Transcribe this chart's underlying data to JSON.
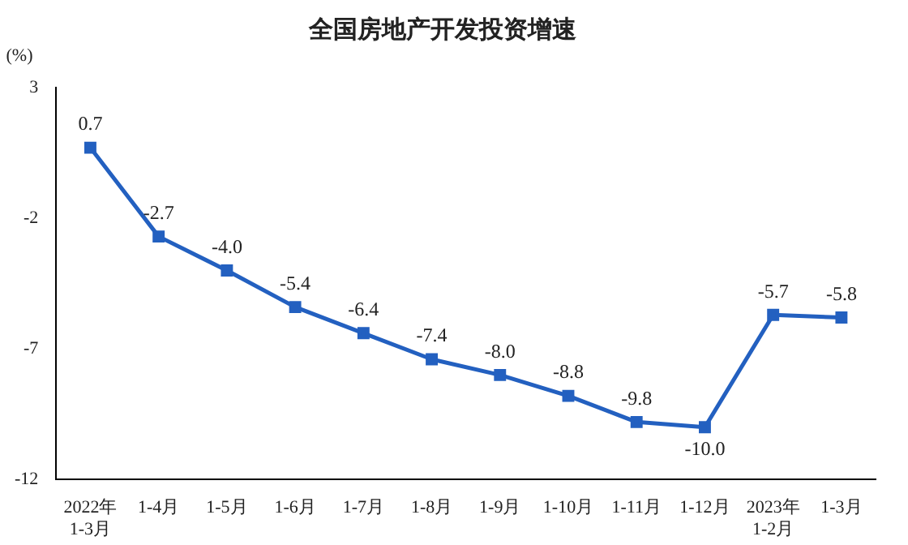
{
  "chart_data": {
    "type": "line",
    "title": "全国房地产开发投资增速",
    "ylabel": "(%)",
    "categories": [
      "2022年\n1-3月",
      "1-4月",
      "1-5月",
      "1-6月",
      "1-7月",
      "1-8月",
      "1-9月",
      "1-10月",
      "1-11月",
      "1-12月",
      "2023年\n1-2月",
      "1-3月"
    ],
    "values": [
      0.7,
      -2.7,
      -4.0,
      -5.4,
      -6.4,
      -7.4,
      -8.0,
      -8.8,
      -9.8,
      -10.0,
      -5.7,
      -5.8
    ],
    "value_labels": [
      "0.7",
      "-2.7",
      "-4.0",
      "-5.4",
      "-6.4",
      "-7.4",
      "-8.0",
      "-8.8",
      "-9.8",
      "-10.0",
      "-5.7",
      "-5.8"
    ],
    "color": "#2360c0",
    "ylim": [
      -12,
      3
    ],
    "yticks": [
      -12,
      -7,
      -2,
      3
    ],
    "grid": false,
    "marker": "square",
    "line_style": "solid",
    "legend": false
  }
}
